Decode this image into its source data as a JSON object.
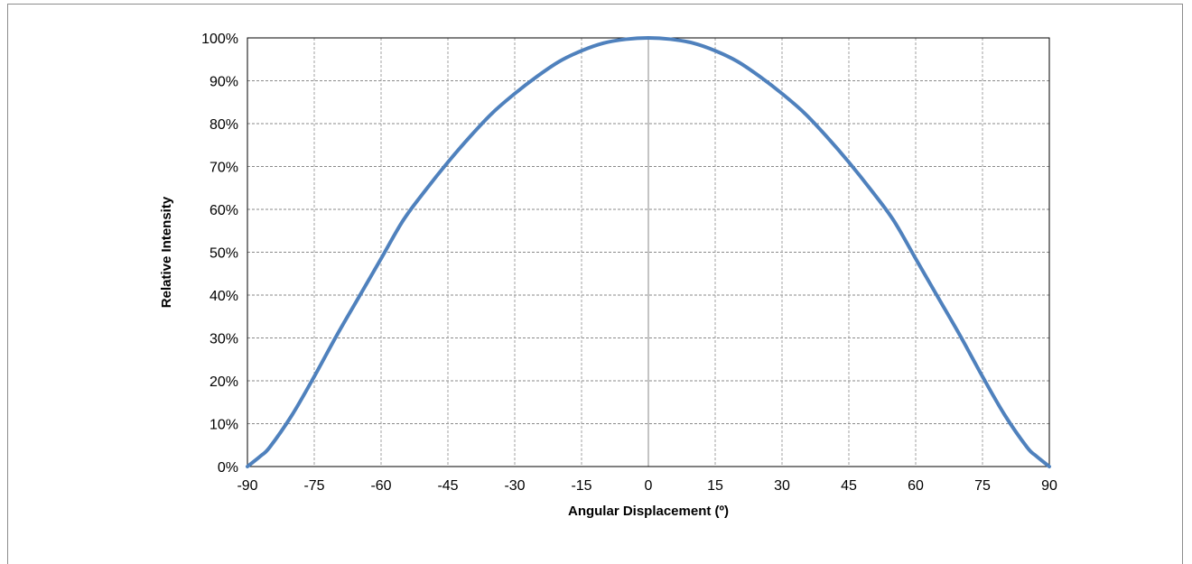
{
  "chart_data": {
    "type": "line",
    "title": "",
    "xlabel": "Angular Displacement (º)",
    "ylabel": "Relative Intensity",
    "xlim": [
      -90,
      90
    ],
    "ylim": [
      0,
      100
    ],
    "x_ticks": [
      -90,
      -75,
      -60,
      -45,
      -30,
      -15,
      0,
      15,
      30,
      45,
      60,
      75,
      90
    ],
    "y_ticks": [
      0,
      10,
      20,
      30,
      40,
      50,
      60,
      70,
      80,
      90,
      100
    ],
    "y_tick_labels": [
      "0%",
      "10%",
      "20%",
      "30%",
      "40%",
      "50%",
      "60%",
      "70%",
      "80%",
      "90%",
      "100%"
    ],
    "grid": true,
    "legend": "none",
    "line_color": "#4f81bd",
    "series": [
      {
        "x": [
          -90,
          -87,
          -85,
          -80,
          -75,
          -70,
          -65,
          -60,
          -55,
          -50,
          -45,
          -40,
          -35,
          -30,
          -25,
          -20,
          -15,
          -10,
          -5,
          0,
          5,
          10,
          15,
          20,
          25,
          30,
          35,
          40,
          45,
          50,
          55,
          60,
          65,
          70,
          75,
          80,
          85,
          87,
          90
        ],
        "y": [
          0,
          2.5,
          4.5,
          12,
          21,
          30.5,
          39.5,
          48.5,
          57.5,
          64.5,
          71,
          77,
          82.5,
          87,
          91,
          94.5,
          97,
          98.8,
          99.7,
          100,
          99.7,
          98.8,
          97,
          94.5,
          91,
          87,
          82.5,
          77,
          71,
          64.5,
          57.5,
          48.5,
          39.5,
          30.5,
          21,
          12,
          4.5,
          2.5,
          0
        ]
      }
    ]
  }
}
